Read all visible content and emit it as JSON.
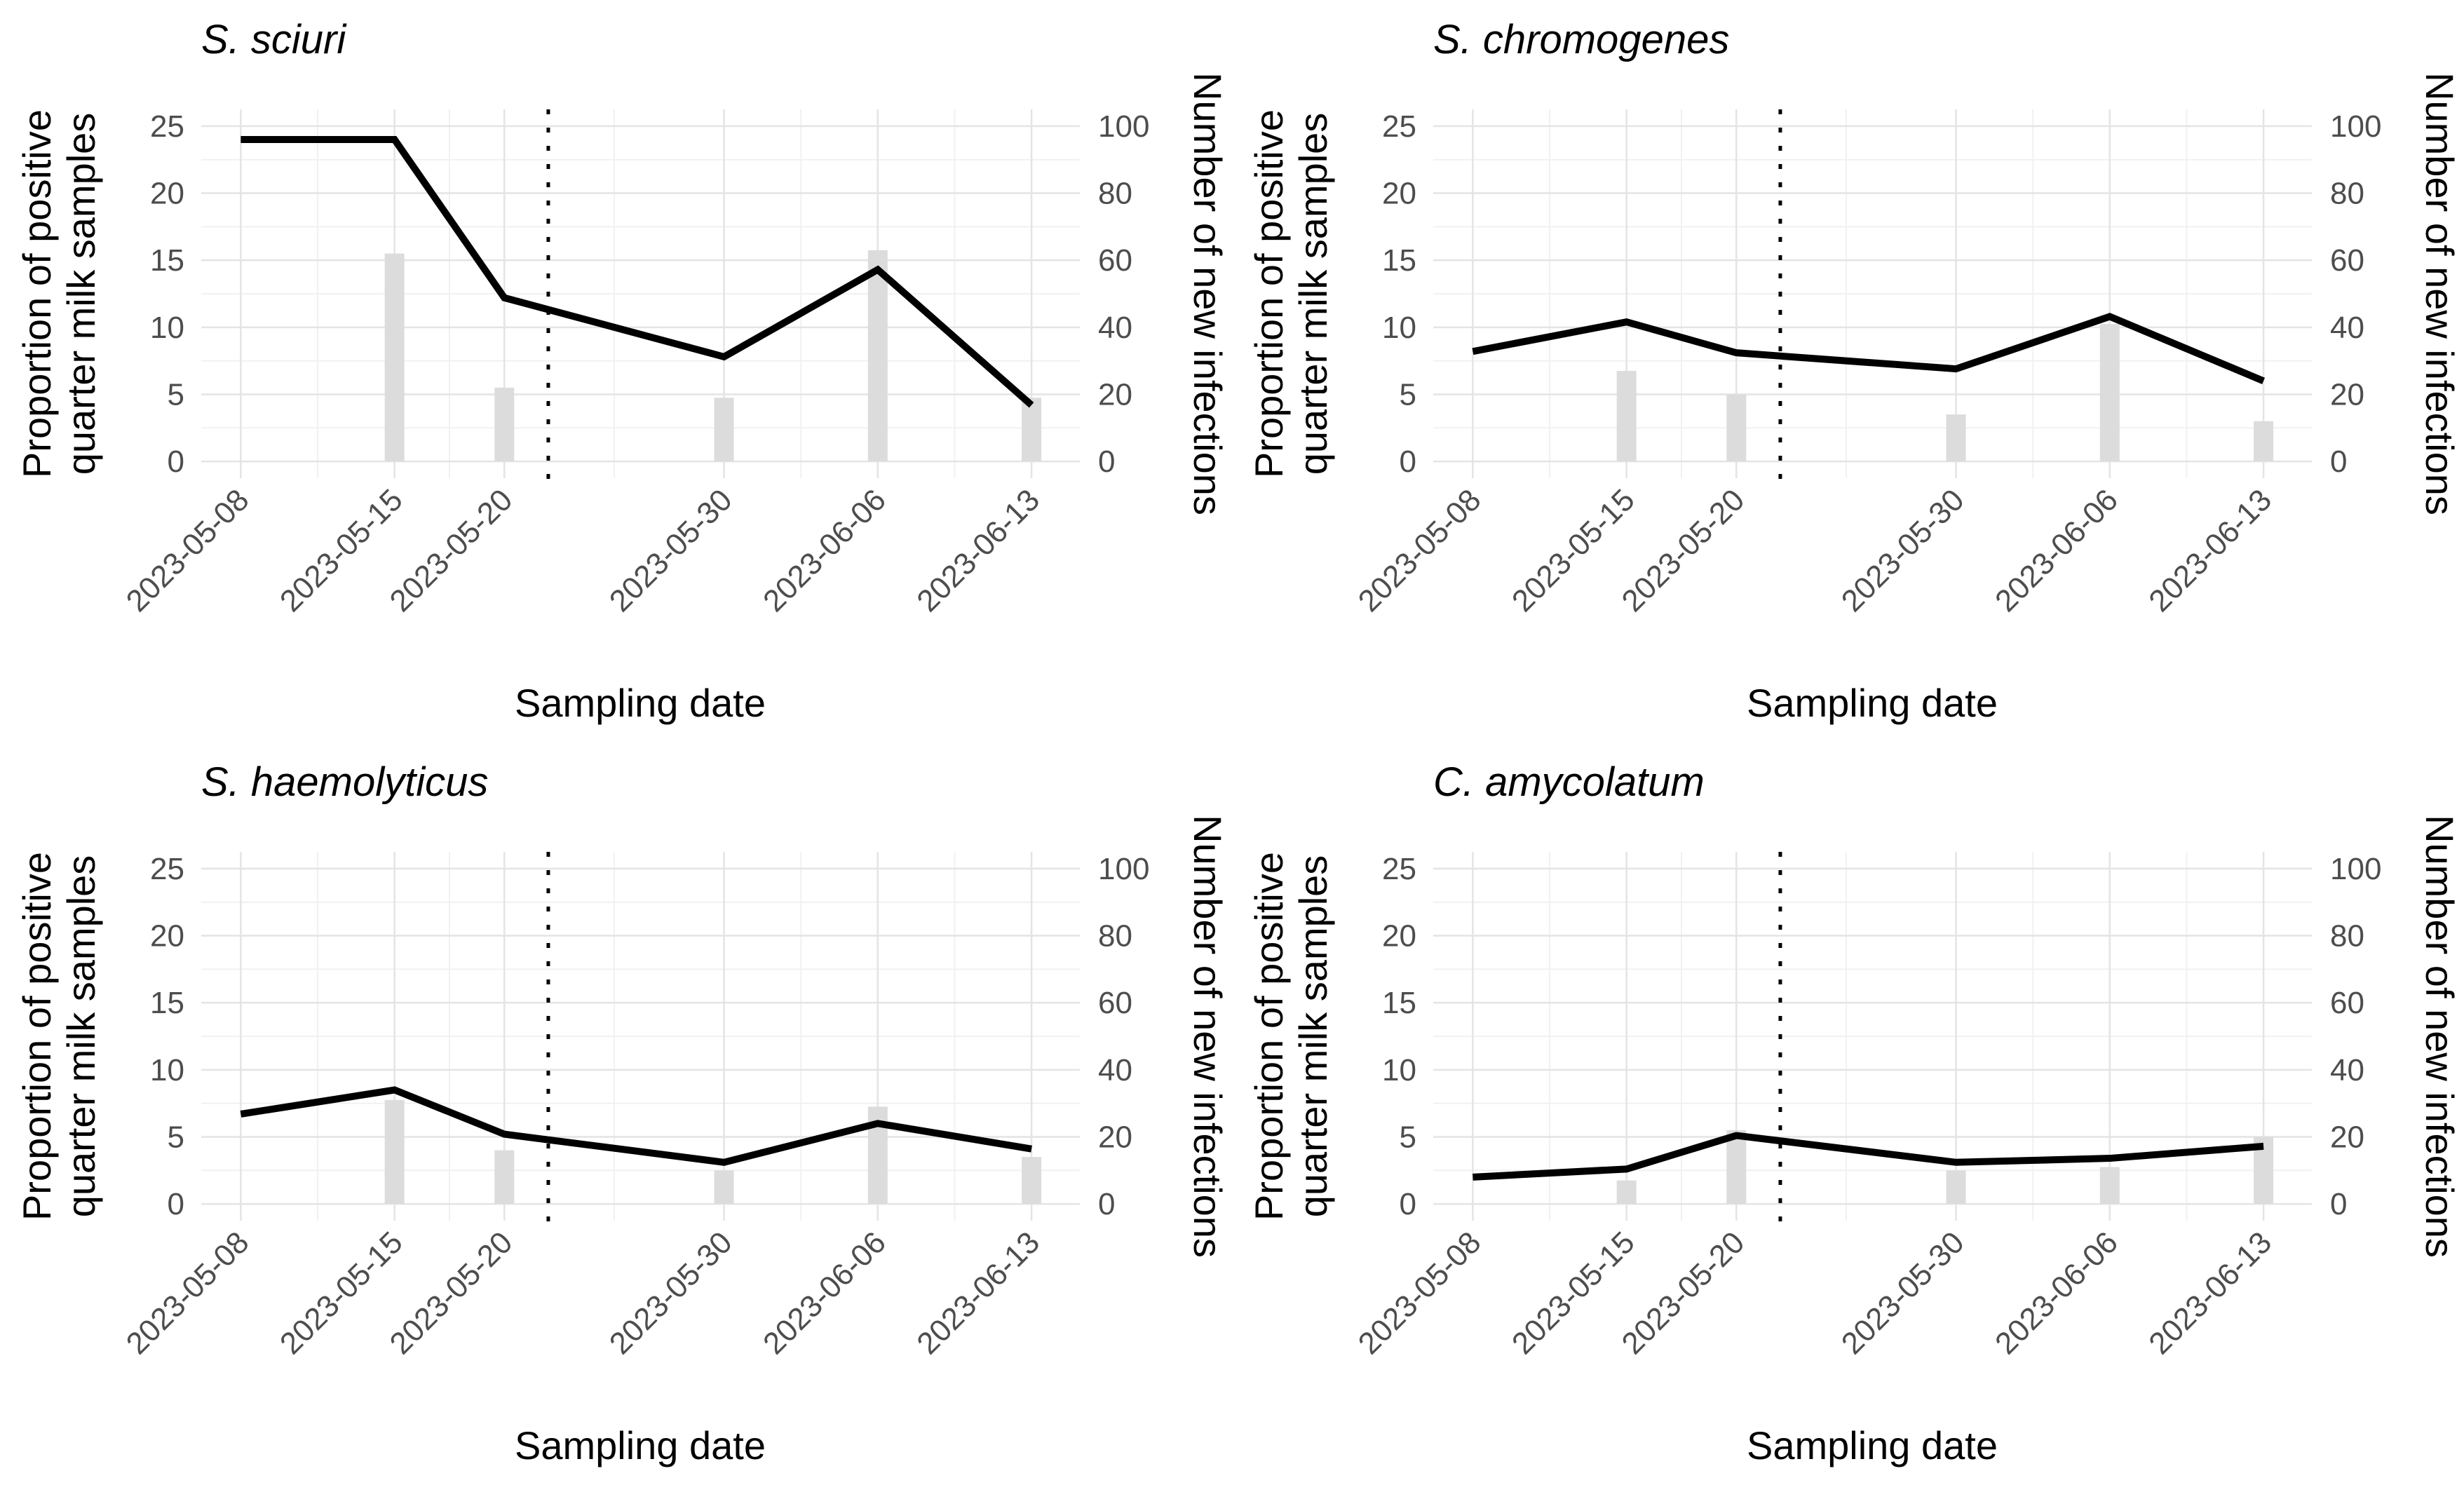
{
  "style": {
    "background": "#ffffff",
    "line_color": "#000000",
    "bar_color": "#dcdcdc",
    "grid_major_color": "#e4e4e4",
    "grid_minor_color": "#f1f1f1",
    "axis_text_color": "#4d4d4d",
    "title_color": "#000000",
    "vline_color": "#000000"
  },
  "chart_data": {
    "type": "line+bar (dual y-axis, 2x2 small multiples)",
    "x": [
      "2023-05-08",
      "2023-05-15",
      "2023-05-20",
      "2023-05-30",
      "2023-06-06",
      "2023-06-13"
    ],
    "xlabel": "Sampling date",
    "ylabel_left": "Proportion of positive quarter milk samples",
    "ylabel_left_lines": [
      "Proportion of positive",
      "quarter milk samples"
    ],
    "ylabel_right": "Number of new infections",
    "ylim_left": [
      0,
      25
    ],
    "ylim_right": [
      0,
      100
    ],
    "left_ticks": [
      0,
      5,
      10,
      15,
      20,
      25
    ],
    "right_ticks": [
      0,
      20,
      40,
      60,
      80,
      100
    ],
    "grid": true,
    "legend": "none",
    "vline_date": "2023-05-22",
    "vline_style": "dotted",
    "charts": [
      {
        "title": "S. sciuri",
        "line_proportion_pct": [
          24,
          24,
          12.2,
          7.8,
          14.3,
          4.2
        ],
        "bars_new_infections": [
          null,
          62,
          22,
          19,
          63,
          19
        ]
      },
      {
        "title": "S. chromogenes",
        "line_proportion_pct": [
          8.2,
          10.4,
          8.1,
          6.9,
          10.8,
          6.0
        ],
        "bars_new_infections": [
          null,
          27,
          20,
          14,
          41,
          12
        ]
      },
      {
        "title": "S. haemolyticus",
        "line_proportion_pct": [
          6.7,
          8.5,
          5.2,
          3.1,
          6.0,
          4.1
        ],
        "bars_new_infections": [
          null,
          31,
          16,
          10,
          29,
          14
        ]
      },
      {
        "title": "C. amycolatum",
        "line_proportion_pct": [
          2.0,
          2.6,
          5.1,
          3.1,
          3.4,
          4.3
        ],
        "bars_new_infections": [
          null,
          7,
          22,
          10,
          11,
          20
        ]
      }
    ]
  }
}
